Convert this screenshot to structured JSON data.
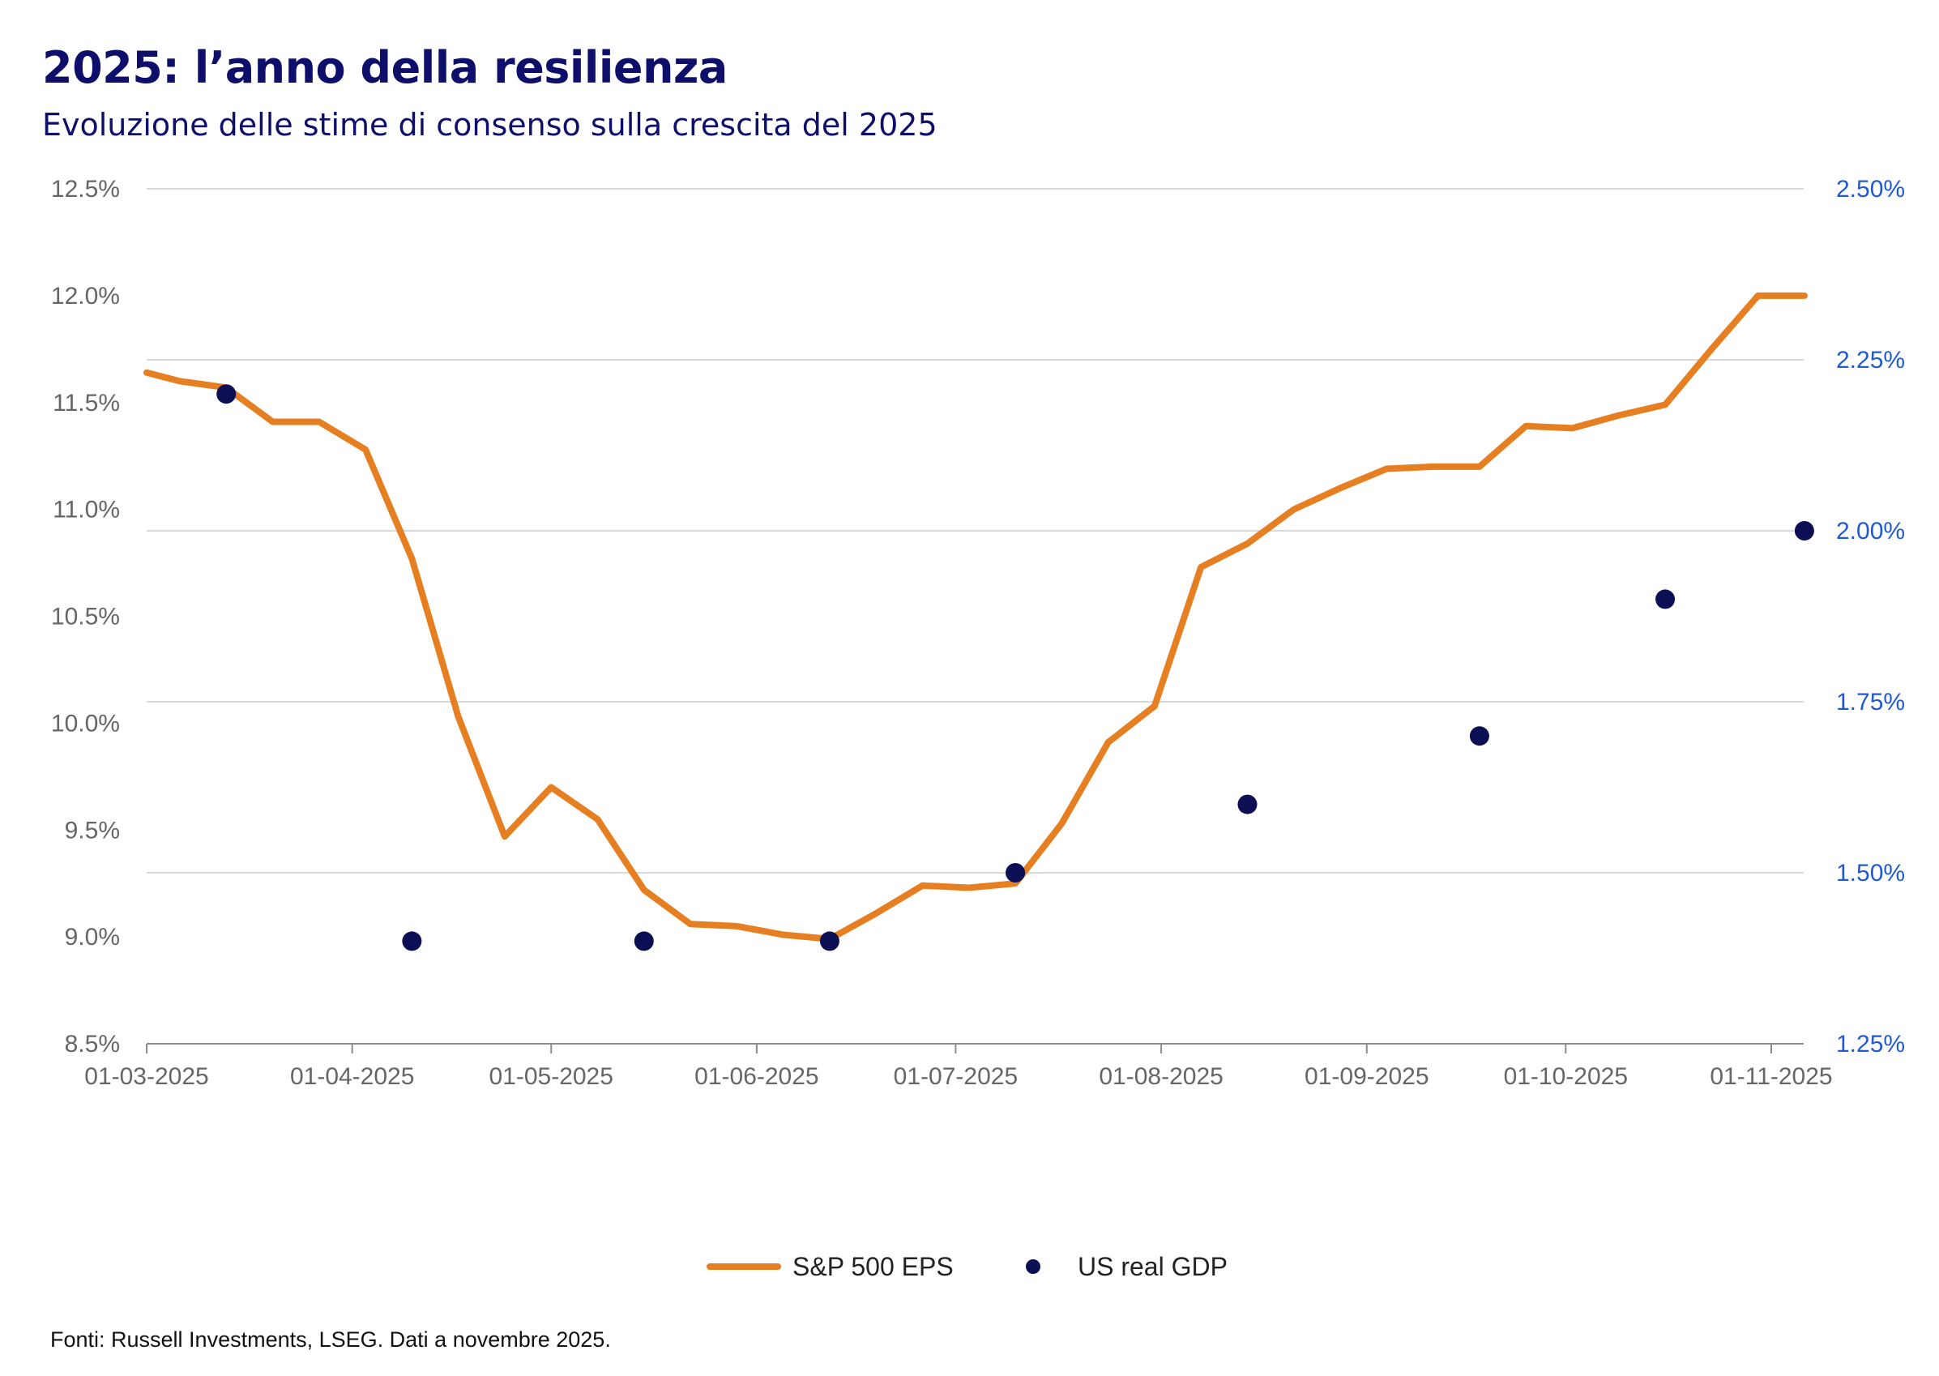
{
  "title": "2025: l’anno della resilienza",
  "subtitle": "Evoluzione delle stime di consenso sulla crescita del 2025",
  "source": "Fonti: Russell Investments, LSEG. Dati a novembre 2025.",
  "colors": {
    "eps_line": "#e67e22",
    "gdp_dots": "#0d0f55",
    "title": "#0d0f6b",
    "right_axis": "#1f5ad1",
    "left_axis": "#666666",
    "grid": "#d9d9d9"
  },
  "chart_data": {
    "type": "line",
    "title": "2025: l’anno della resilienza",
    "subtitle": "Evoluzione delle stime di consenso sulla crescita del 2025",
    "xlabel": "",
    "ylabel": "",
    "x_range": [
      "2025-03-01",
      "2025-11-01"
    ],
    "x_ticks": [
      "01-03-2025",
      "01-04-2025",
      "01-05-2025",
      "01-06-2025",
      "01-07-2025",
      "01-08-2025",
      "01-09-2025",
      "01-10-2025",
      "01-11-2025"
    ],
    "y_left": {
      "min": 8.5,
      "max": 12.5,
      "ticks": [
        "8.5%",
        "9.0%",
        "9.5%",
        "10.0%",
        "10.5%",
        "11.0%",
        "11.5%",
        "12.0%",
        "12.5%"
      ]
    },
    "y_right": {
      "min": 1.25,
      "max": 2.5,
      "ticks": [
        "1.25%",
        "1.50%",
        "1.75%",
        "2.00%",
        "2.25%",
        "2.50%"
      ]
    },
    "grid": true,
    "legend_position": "bottom-center",
    "series": [
      {
        "name": "S&P 500 EPS",
        "type": "line",
        "axis": "left",
        "points": [
          [
            "2025-03-01",
            11.64
          ],
          [
            "2025-03-06",
            11.6
          ],
          [
            "2025-03-13",
            11.57
          ],
          [
            "2025-03-20",
            11.41
          ],
          [
            "2025-03-27",
            11.41
          ],
          [
            "2025-04-03",
            11.28
          ],
          [
            "2025-04-10",
            10.77
          ],
          [
            "2025-04-17",
            10.03
          ],
          [
            "2025-04-24",
            9.47
          ],
          [
            "2025-05-01",
            9.7
          ],
          [
            "2025-05-08",
            9.55
          ],
          [
            "2025-05-15",
            9.22
          ],
          [
            "2025-05-22",
            9.06
          ],
          [
            "2025-05-29",
            9.05
          ],
          [
            "2025-06-05",
            9.01
          ],
          [
            "2025-06-12",
            8.99
          ],
          [
            "2025-06-19",
            9.11
          ],
          [
            "2025-06-26",
            9.24
          ],
          [
            "2025-07-03",
            9.23
          ],
          [
            "2025-07-10",
            9.25
          ],
          [
            "2025-07-17",
            9.53
          ],
          [
            "2025-07-24",
            9.91
          ],
          [
            "2025-07-31",
            10.08
          ],
          [
            "2025-08-07",
            10.73
          ],
          [
            "2025-08-14",
            10.84
          ],
          [
            "2025-08-21",
            11.0
          ],
          [
            "2025-08-28",
            11.1
          ],
          [
            "2025-09-04",
            11.19
          ],
          [
            "2025-09-11",
            11.2
          ],
          [
            "2025-09-18",
            11.2
          ],
          [
            "2025-09-25",
            11.39
          ],
          [
            "2025-10-02",
            11.38
          ],
          [
            "2025-10-09",
            11.44
          ],
          [
            "2025-10-16",
            11.49
          ],
          [
            "2025-10-23",
            11.75
          ],
          [
            "2025-10-30",
            12.0
          ],
          [
            "2025-11-06",
            12.0
          ]
        ]
      },
      {
        "name": "US real GDP",
        "type": "scatter",
        "axis": "right",
        "points": [
          [
            "2025-03-13",
            2.2
          ],
          [
            "2025-04-10",
            1.4
          ],
          [
            "2025-05-15",
            1.4
          ],
          [
            "2025-06-12",
            1.4
          ],
          [
            "2025-07-10",
            1.5
          ],
          [
            "2025-08-14",
            1.6
          ],
          [
            "2025-09-18",
            1.7
          ],
          [
            "2025-10-16",
            1.9
          ],
          [
            "2025-11-06",
            2.0
          ]
        ]
      }
    ]
  }
}
